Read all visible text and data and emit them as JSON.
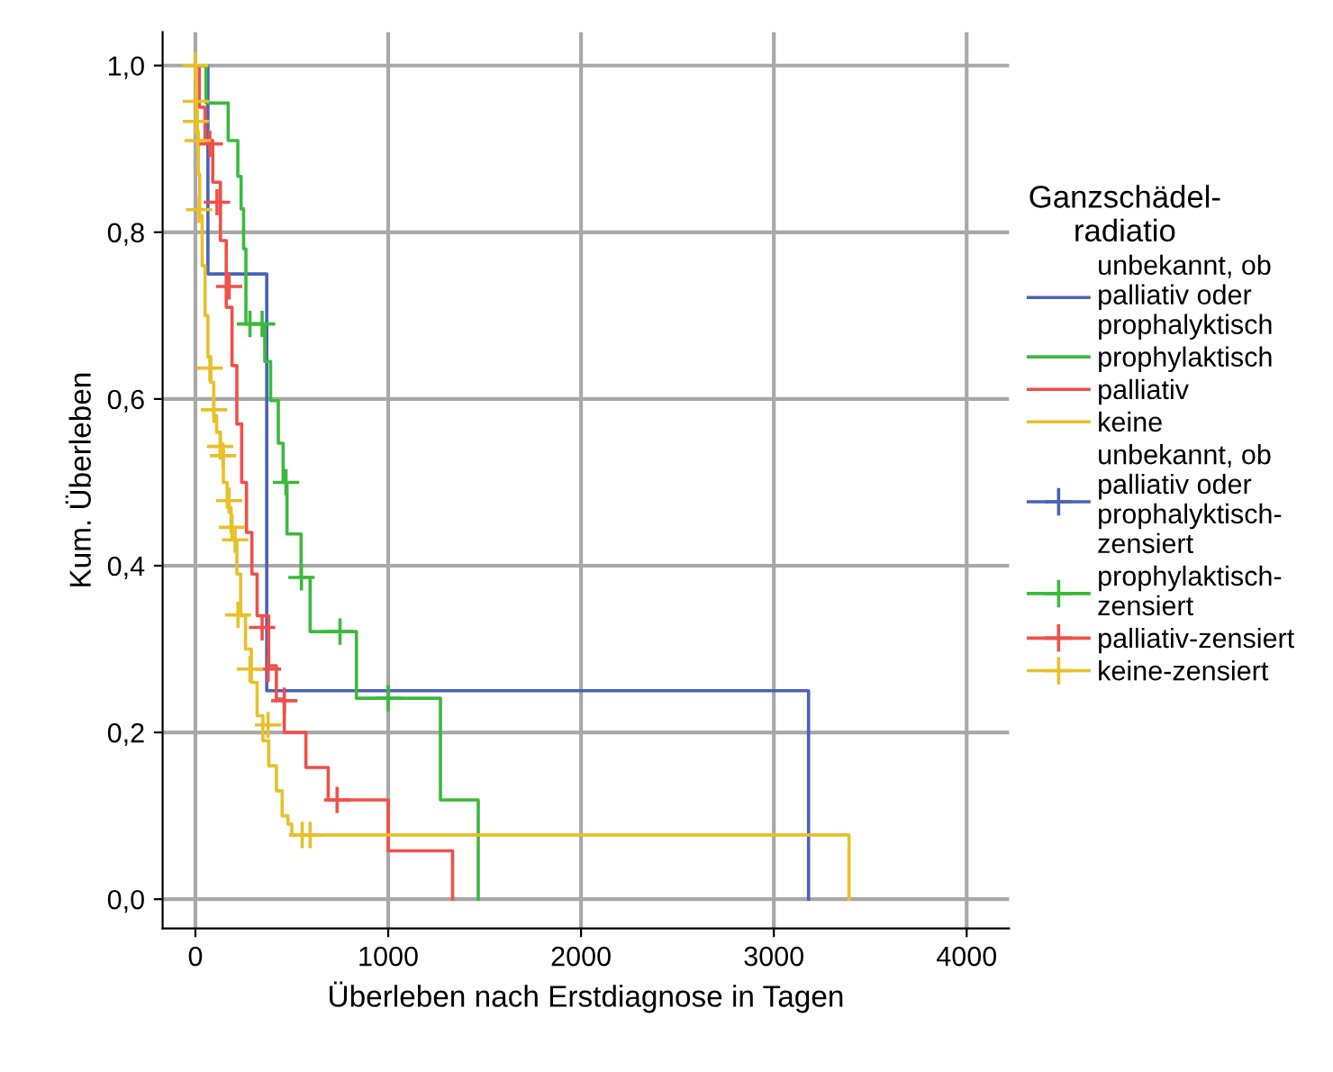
{
  "chart_data": {
    "type": "step",
    "xlabel": "Überleben nach Erstdiagnose in Tagen",
    "ylabel": "Kum. Überleben",
    "legend_title": "Ganzschädel-\nradiatio",
    "xlim": [
      -170,
      4220
    ],
    "ylim": [
      -0.035,
      1.04
    ],
    "xticks": [
      0,
      1000,
      2000,
      3000,
      4000
    ],
    "yticks": [
      {
        "value": 0,
        "label": "0,0"
      },
      {
        "value": 0.2,
        "label": "0,2"
      },
      {
        "value": 0.4,
        "label": "0,4"
      },
      {
        "value": 0.6,
        "label": "0,6"
      },
      {
        "value": 0.8,
        "label": "0,8"
      },
      {
        "value": 1.0,
        "label": "1,0"
      }
    ],
    "grid": true,
    "legend": "right",
    "series": [
      {
        "name": "unbekannt, ob\npalliativ oder\nprophalyktisch",
        "color": "#4a62b8",
        "x": [
          0,
          65,
          370,
          3180
        ],
        "values": [
          1,
          0.75,
          0.25,
          0
        ]
      },
      {
        "name": "prophylaktisch",
        "color": "#3cb93c",
        "x": [
          0,
          55,
          170,
          220,
          237,
          250,
          262,
          360,
          390,
          430,
          455,
          475,
          548,
          595,
          835,
          1271,
          1467
        ],
        "values": [
          1,
          0.955,
          0.91,
          0.867,
          0.828,
          0.78,
          0.69,
          0.645,
          0.598,
          0.547,
          0.5,
          0.438,
          0.386,
          0.321,
          0.241,
          0.119,
          0
        ]
      },
      {
        "name": "palliativ",
        "color": "#f0504a",
        "x": [
          0,
          20,
          50,
          90,
          130,
          160,
          190,
          215,
          240,
          265,
          293,
          320,
          380,
          420,
          461,
          573,
          689,
          1000,
          1334
        ],
        "values": [
          1,
          0.95,
          0.91,
          0.86,
          0.79,
          0.71,
          0.64,
          0.57,
          0.5,
          0.44,
          0.39,
          0.34,
          0.28,
          0.24,
          0.2,
          0.158,
          0.119,
          0.058,
          0
        ]
      },
      {
        "name": "keine",
        "color": "#e8c02a",
        "x": [
          0,
          2,
          5,
          10,
          15,
          22,
          35,
          50,
          65,
          80,
          95,
          110,
          130,
          145,
          165,
          185,
          200,
          215,
          235,
          260,
          290,
          320,
          350,
          380,
          420,
          450,
          480,
          500,
          3390
        ],
        "values": [
          1,
          0.98,
          0.945,
          0.92,
          0.87,
          0.82,
          0.76,
          0.7,
          0.65,
          0.62,
          0.58,
          0.56,
          0.54,
          0.5,
          0.47,
          0.44,
          0.43,
          0.39,
          0.34,
          0.3,
          0.26,
          0.22,
          0.19,
          0.16,
          0.13,
          0.1,
          0.09,
          0.077,
          0
        ]
      },
      {
        "type": "scatter",
        "marker": "cross",
        "name": "unbekannt, ob\npalliativ oder\nprophalyktisch-\nzensiert",
        "color": "#4a62b8"
      },
      {
        "type": "scatter",
        "marker": "cross",
        "name": "prophylaktisch-\nzensiert",
        "color": "#3cb93c",
        "x": [
          283,
          346,
          470,
          550,
          750,
          1000
        ],
        "values": [
          0.69,
          0.69,
          0.5,
          0.386,
          0.321,
          0.241
        ]
      },
      {
        "type": "scatter",
        "marker": "cross",
        "name": "palliativ-zensiert",
        "color": "#f0504a",
        "x": [
          75,
          112,
          175,
          346,
          377,
          461,
          735
        ],
        "values": [
          0.906,
          0.836,
          0.735,
          0.326,
          0.276,
          0.238,
          0.119
        ]
      },
      {
        "type": "scatter",
        "marker": "cross",
        "name": "keine-zensiert",
        "color": "#e8c02a",
        "x": [
          0,
          3,
          3,
          12,
          19,
          75,
          96,
          128,
          143,
          175,
          190,
          206,
          221,
          283,
          377,
          554,
          595
        ],
        "values": [
          1,
          0.957,
          0.933,
          0.91,
          0.827,
          0.637,
          0.587,
          0.543,
          0.532,
          0.478,
          0.446,
          0.431,
          0.341,
          0.276,
          0.209,
          0.077,
          0.077
        ]
      }
    ]
  }
}
